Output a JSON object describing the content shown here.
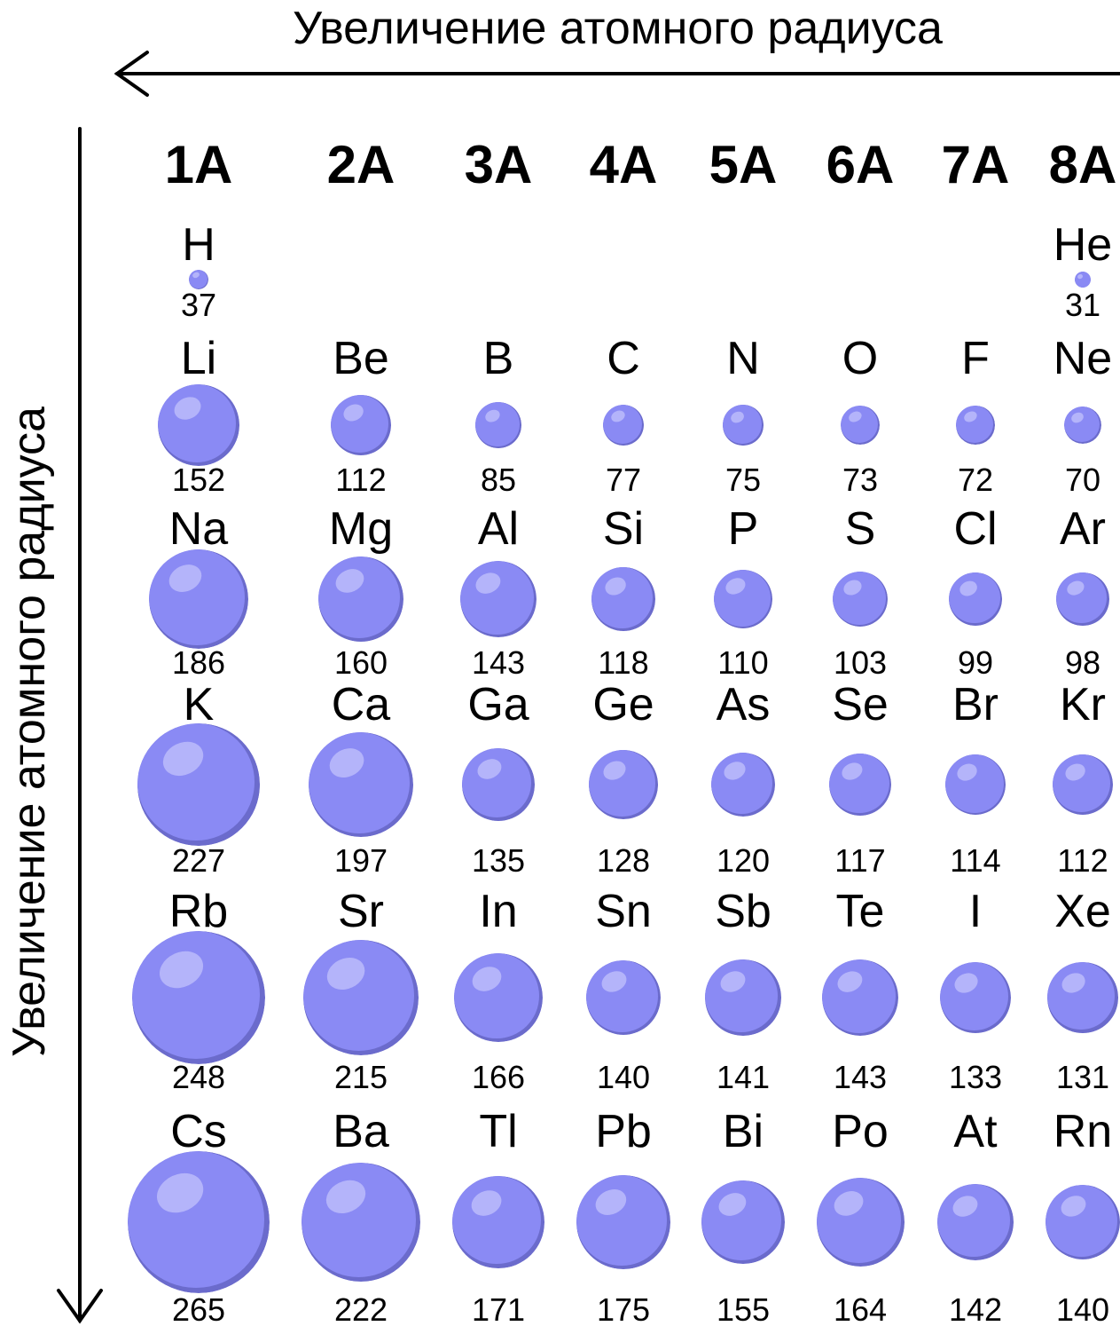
{
  "horizontal_axis": {
    "label": "Увеличение атомного радиуса",
    "direction": "left"
  },
  "vertical_axis": {
    "label": "Увеличение атомного радиуса",
    "direction": "down"
  },
  "groups": [
    "1A",
    "2A",
    "3A",
    "4A",
    "5A",
    "6A",
    "7A",
    "8A"
  ],
  "periods": [
    [
      {
        "symbol": "H",
        "radius": "37"
      },
      null,
      null,
      null,
      null,
      null,
      null,
      {
        "symbol": "He",
        "radius": "31"
      }
    ],
    [
      {
        "symbol": "Li",
        "radius": "152"
      },
      {
        "symbol": "Be",
        "radius": "112"
      },
      {
        "symbol": "B",
        "radius": "85"
      },
      {
        "symbol": "C",
        "radius": "77"
      },
      {
        "symbol": "N",
        "radius": "75"
      },
      {
        "symbol": "O",
        "radius": "73"
      },
      {
        "symbol": "F",
        "radius": "72"
      },
      {
        "symbol": "Ne",
        "radius": "70"
      }
    ],
    [
      {
        "symbol": "Na",
        "radius": "186"
      },
      {
        "symbol": "Mg",
        "radius": "160"
      },
      {
        "symbol": "Al",
        "radius": "143"
      },
      {
        "symbol": "Si",
        "radius": "118"
      },
      {
        "symbol": "P",
        "radius": "110"
      },
      {
        "symbol": "S",
        "radius": "103"
      },
      {
        "symbol": "Cl",
        "radius": "99"
      },
      {
        "symbol": "Ar",
        "radius": "98"
      }
    ],
    [
      {
        "symbol": "K",
        "radius": "227"
      },
      {
        "symbol": "Ca",
        "radius": "197"
      },
      {
        "symbol": "Ga",
        "radius": "135"
      },
      {
        "symbol": "Ge",
        "radius": "128"
      },
      {
        "symbol": "As",
        "radius": "120"
      },
      {
        "symbol": "Se",
        "radius": "117"
      },
      {
        "symbol": "Br",
        "radius": "114"
      },
      {
        "symbol": "Kr",
        "radius": "112"
      }
    ],
    [
      {
        "symbol": "Rb",
        "radius": "248"
      },
      {
        "symbol": "Sr",
        "radius": "215"
      },
      {
        "symbol": "In",
        "radius": "166"
      },
      {
        "symbol": "Sn",
        "radius": "140"
      },
      {
        "symbol": "Sb",
        "radius": "141"
      },
      {
        "symbol": "Te",
        "radius": "143"
      },
      {
        "symbol": "I",
        "radius": "133"
      },
      {
        "symbol": "Xe",
        "radius": "131"
      }
    ],
    [
      {
        "symbol": "Cs",
        "radius": "265"
      },
      {
        "symbol": "Ba",
        "radius": "222"
      },
      {
        "symbol": "Tl",
        "radius": "171"
      },
      {
        "symbol": "Pb",
        "radius": "175"
      },
      {
        "symbol": "Bi",
        "radius": "155"
      },
      {
        "symbol": "Po",
        "radius": "164"
      },
      {
        "symbol": "At",
        "radius": "142"
      },
      {
        "symbol": "Rn",
        "radius": "140"
      }
    ]
  ],
  "colors": {
    "atom": "#8a8af4",
    "atom_shadow": "#6b6bcc",
    "atom_highlight": "#b4b4fa",
    "text": "#000000"
  }
}
